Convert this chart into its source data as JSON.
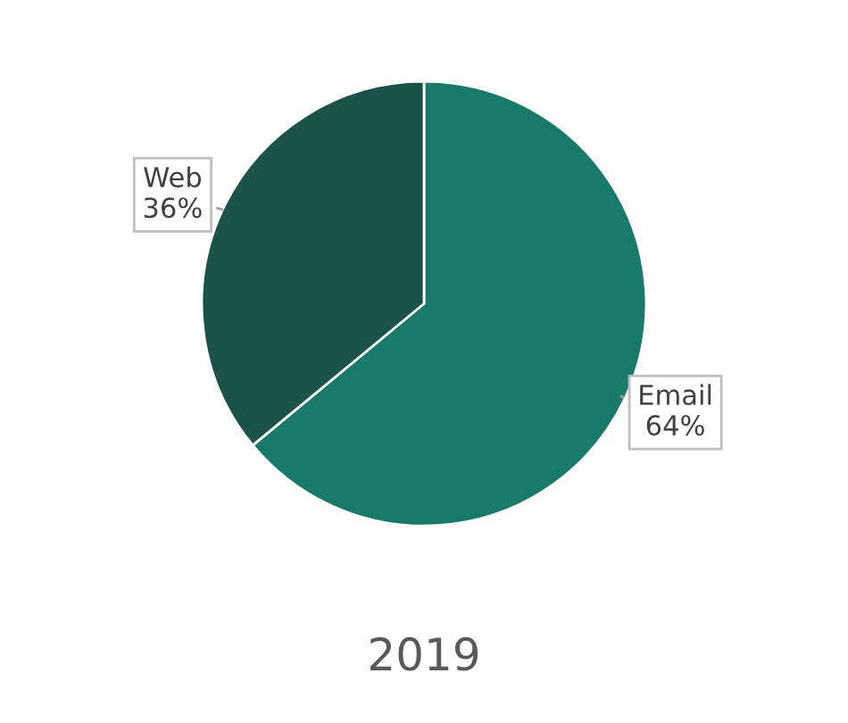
{
  "chart_data": {
    "type": "pie",
    "title": "2019",
    "categories": [
      "Email",
      "Web"
    ],
    "values": [
      64,
      36
    ],
    "colors": [
      "#1a7a6a",
      "#1b5249"
    ],
    "value_labels": [
      "64%",
      "36%"
    ]
  }
}
